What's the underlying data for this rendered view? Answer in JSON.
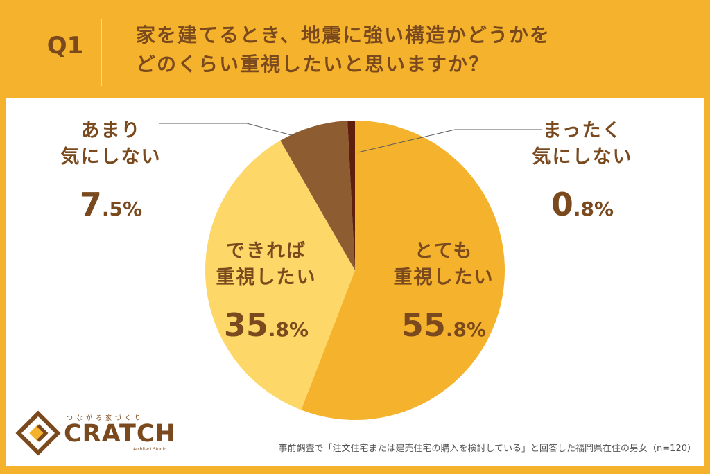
{
  "header": {
    "question_number": "Q1",
    "question_line1": "家を建てるとき、地震に強い構造かどうかを",
    "question_line2": "どのくらい重視したいと思いますか？"
  },
  "chart_data": {
    "type": "pie",
    "title": "",
    "slices": [
      {
        "label_lines": [
          "とても",
          "重視したい"
        ],
        "value": 55.8,
        "value_int": "55",
        "value_dec": ".8%",
        "color": "#f5b32d"
      },
      {
        "label_lines": [
          "できれば",
          "重視したい"
        ],
        "value": 35.8,
        "value_int": "35",
        "value_dec": ".8%",
        "color": "#fdd768"
      },
      {
        "label_lines": [
          "あまり",
          "気にしない"
        ],
        "value": 7.5,
        "value_int": "7",
        "value_dec": ".5%",
        "color": "#8d5c30"
      },
      {
        "label_lines": [
          "まったく",
          "気にしない"
        ],
        "value": 0.8,
        "value_int": "0",
        "value_dec": ".8%",
        "color": "#5e1f0c"
      }
    ],
    "start": "12 o'clock",
    "direction": "clockwise"
  },
  "footer": {
    "tagline": "つながる家づくり",
    "brand": "CRATCH",
    "brand_sub": "Architect Studio",
    "note": "事前調査で「注文住宅または建売住宅の購入を検討している」と回答した福岡県在住の男女（n=120）"
  },
  "colors": {
    "background": "#f5b32d",
    "text": "#7a4a1e",
    "panel": "#ffffff"
  }
}
